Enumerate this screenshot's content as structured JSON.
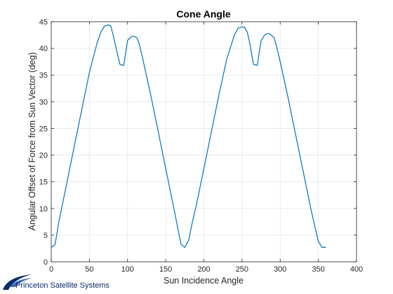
{
  "colors": {
    "series": "#0072BD",
    "grid": "#e6e6e6",
    "axis": "#262626",
    "logo": "#0a2a6b"
  },
  "logo": {
    "text": "Princeton Satellite Systems"
  },
  "chart_data": {
    "type": "line",
    "title": "Cone Angle",
    "xlabel": "Sun Incidence Angle",
    "ylabel": "Angular Offset of Force from Sun Vector (deg)",
    "xlim": [
      0,
      400
    ],
    "ylim": [
      0,
      45
    ],
    "xticks": [
      0,
      50,
      100,
      150,
      200,
      250,
      300,
      350,
      400
    ],
    "yticks": [
      0,
      5,
      10,
      15,
      20,
      25,
      30,
      35,
      40,
      45
    ],
    "grid": true,
    "series": [
      {
        "x": [
          0,
          5,
          10,
          20,
          30,
          40,
          50,
          60,
          65,
          70,
          75,
          78,
          82,
          85,
          90,
          95,
          100,
          105,
          108,
          112,
          115,
          120,
          130,
          140,
          150,
          160,
          170,
          175,
          180,
          185,
          190,
          200,
          210,
          220,
          230,
          240,
          245,
          250,
          253,
          257,
          260,
          265,
          270,
          275,
          280,
          285,
          288,
          292,
          295,
          300,
          310,
          320,
          330,
          340,
          350,
          355,
          360
        ],
        "y": [
          2.7,
          3.2,
          7.5,
          14.5,
          21.5,
          28.5,
          35.5,
          41.0,
          43.0,
          44.2,
          44.4,
          44.2,
          42.0,
          40.0,
          37.0,
          36.8,
          41.5,
          42.2,
          42.3,
          42.0,
          41.0,
          38.0,
          31.5,
          24.5,
          17.5,
          10.5,
          3.3,
          2.7,
          4.0,
          7.5,
          10.5,
          17.5,
          24.5,
          31.5,
          38.0,
          42.5,
          43.8,
          44.0,
          44.0,
          43.0,
          41.0,
          37.0,
          36.8,
          41.5,
          42.6,
          42.8,
          42.5,
          42.0,
          40.5,
          37.5,
          31.0,
          24.0,
          17.0,
          10.0,
          3.8,
          2.7,
          2.7
        ]
      }
    ]
  }
}
